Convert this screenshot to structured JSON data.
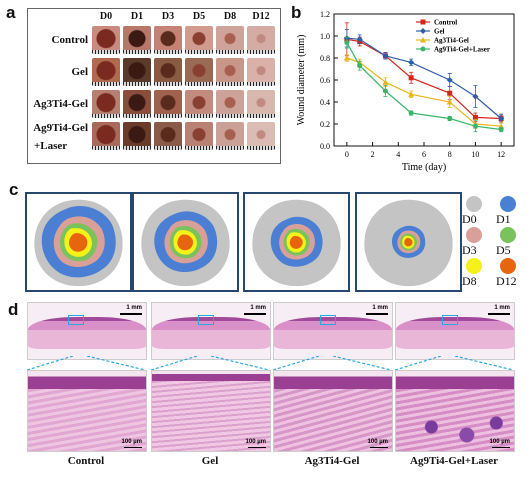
{
  "panels": {
    "a": {
      "label": "a",
      "columns": [
        "D0",
        "D1",
        "D3",
        "D5",
        "D8",
        "D12"
      ],
      "rows": [
        {
          "label": "Control",
          "sub": ""
        },
        {
          "label": "Gel",
          "sub": ""
        },
        {
          "label": "Ag3Ti4-Gel",
          "sub": ""
        },
        {
          "label": "Ag9Ti4-Gel",
          "sub": "+Laser"
        }
      ]
    },
    "b": {
      "label": "b"
    },
    "c": {
      "label": "c",
      "legend": [
        {
          "name": "D0",
          "color": "#c4c4c4"
        },
        {
          "name": "D1",
          "color": "#4a7fd4"
        },
        {
          "name": "D3",
          "color": "#d9a09a"
        },
        {
          "name": "D5",
          "color": "#7ac25c"
        },
        {
          "name": "D8",
          "color": "#f5f21a"
        },
        {
          "name": "D12",
          "color": "#e8650f"
        }
      ]
    },
    "d": {
      "label": "d",
      "scale_top": "1 mm",
      "scale_bottom": "100 µm",
      "captions": [
        "Control",
        "Gel",
        "Ag3Ti4-Gel",
        "Ag9Ti4-Gel+Laser"
      ]
    }
  },
  "chart_data": {
    "type": "line",
    "title": "",
    "xlabel": "Time (day)",
    "ylabel": "Wound diameter (mm)",
    "xlim": [
      -1,
      13
    ],
    "ylim": [
      0.0,
      1.2
    ],
    "xticks": [
      0,
      2,
      4,
      6,
      8,
      10,
      12
    ],
    "yticks": [
      0.0,
      0.2,
      0.4,
      0.6,
      0.8,
      1.0,
      1.2
    ],
    "legend_position": "top-right",
    "series": [
      {
        "name": "Control",
        "color": "#d4261c",
        "marker": "square",
        "x": [
          0,
          1,
          3,
          5,
          8,
          10,
          12
        ],
        "y": [
          0.97,
          0.95,
          0.82,
          0.62,
          0.48,
          0.26,
          0.25
        ],
        "err": [
          0.15,
          0.04,
          0.03,
          0.05,
          0.06,
          0.04,
          0.03
        ]
      },
      {
        "name": "Gel",
        "color": "#2d5ea8",
        "marker": "diamond",
        "x": [
          0,
          1,
          3,
          5,
          8,
          10,
          12
        ],
        "y": [
          0.98,
          0.97,
          0.82,
          0.76,
          0.6,
          0.45,
          0.25
        ],
        "err": [
          0.08,
          0.04,
          0.03,
          0.03,
          0.06,
          0.1,
          0.04
        ]
      },
      {
        "name": "Ag3Ti4-Gel",
        "color": "#e6b61a",
        "marker": "triangle",
        "x": [
          0,
          1,
          3,
          5,
          8,
          10,
          12
        ],
        "y": [
          0.8,
          0.76,
          0.58,
          0.47,
          0.4,
          0.2,
          0.18
        ],
        "err": [
          0.03,
          0.03,
          0.04,
          0.03,
          0.05,
          0.04,
          0.03
        ]
      },
      {
        "name": "Ag9Ti4-Gel+Laser",
        "color": "#3cb56a",
        "marker": "circle",
        "x": [
          0,
          1,
          3,
          5,
          8,
          10,
          12
        ],
        "y": [
          0.94,
          0.73,
          0.5,
          0.3,
          0.25,
          0.18,
          0.15
        ],
        "err": [
          0.05,
          0.04,
          0.05,
          0.02,
          0.02,
          0.05,
          0.02
        ]
      }
    ]
  },
  "diagram_data": {
    "wounds": [
      {
        "present": [
          "D0",
          "D1",
          "D3",
          "D5",
          "D8",
          "D12"
        ]
      },
      {
        "present": [
          "D0",
          "D1",
          "D3",
          "D5",
          "D8",
          "D12"
        ]
      },
      {
        "present": [
          "D0",
          "D1",
          "D3",
          "D5",
          "D8",
          "D12"
        ]
      },
      {
        "present": [
          "D0",
          "D1",
          "D3",
          "D5",
          "D8",
          "D12"
        ]
      }
    ]
  }
}
